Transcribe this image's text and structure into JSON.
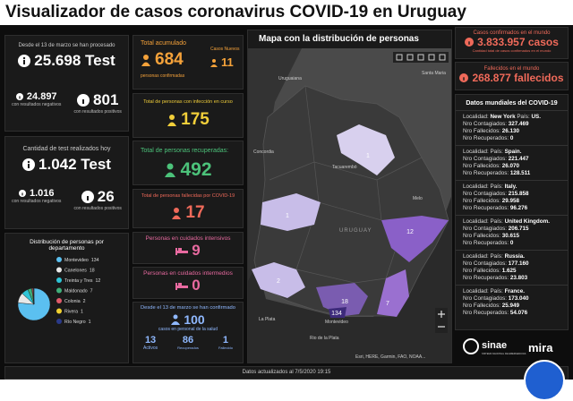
{
  "header": {
    "title": "Visualizador de casos coronavirus COVID-19 en Uruguay"
  },
  "tests_total": {
    "label": "Desde el 13 de marzo se han procesado",
    "value": "25.698 Test",
    "negative": "24.897",
    "negative_label": "con resultados negativos",
    "positive": "801",
    "positive_label": "con resultados positivos"
  },
  "tests_today": {
    "label": "Cantidad de test realizados hoy",
    "value": "1.042 Test",
    "negative": "1.016",
    "negative_label": "con resultados negativos",
    "positive": "26",
    "positive_label": "con resultados positivos"
  },
  "chart_data": {
    "type": "pie",
    "title": "Distribución de personas por departamento",
    "categories": [
      "Montevideo",
      "Canelones",
      "Treinta y Tres",
      "Maldonado",
      "Colonia",
      "Rivera",
      "Río Negro"
    ],
    "values": [
      134,
      18,
      12,
      7,
      2,
      1,
      1
    ],
    "colors": [
      "#5bc0f0",
      "#e8e8e8",
      "#2ec4d6",
      "#3fae7a",
      "#e05a6a",
      "#f0d030",
      "#2a3a8a"
    ]
  },
  "cases": {
    "label": "Total acumulado",
    "value": "684",
    "sub": "personas confirmadas",
    "new_label": "Casos Nuevos",
    "new_value": "11"
  },
  "active": {
    "label": "Total de personas con infección en curso",
    "value": "175"
  },
  "recovered": {
    "label": "Total de personas recuperadas:",
    "value": "492"
  },
  "deaths": {
    "label": "Total de personas fallecidas por COVID-19",
    "value": "17"
  },
  "icu": {
    "label": "Personas en cuidados intensivos",
    "value": "9"
  },
  "intermediate": {
    "label": "Personas en cuidados intermedios",
    "value": "0"
  },
  "health": {
    "label": "Desde el 13 de marzo se han confirmado",
    "value": "100",
    "sub": "casos en personal de la salud",
    "active": "13",
    "active_label": "Activos",
    "recovered": "86",
    "recovered_label": "Recuperados",
    "deceased": "1",
    "deceased_label": "Fallecido"
  },
  "map": {
    "title": "Mapa con la distribución de personas",
    "places": [
      "Uruguaiana",
      "Santa Maria",
      "Concordia",
      "Tacuarembó",
      "Melo",
      "URUGUAY",
      "La Plata",
      "Montevideo",
      "Rio de la Plata"
    ],
    "counts": [
      "1",
      "1",
      "12",
      "2",
      "18",
      "134",
      "7"
    ],
    "attribution": "Esri, HERE, Garmin, FAO, NOAA..."
  },
  "world": {
    "cases_label": "Casos confirmados en el mundo",
    "cases": "3.833.957 casos",
    "cases_sub": "Cantidad total de casos confirmados en el mundo",
    "deaths_label": "Fallecidos en el mundo",
    "deaths": "268.877 fallecidos"
  },
  "countries": {
    "title": "Datos mundiales del COVID-19",
    "labels": {
      "locality": "Localidad:",
      "country": "País:",
      "confirmed": "Nro Contagiados:",
      "deaths": "Nro Fallecidos:",
      "recovered": "Nro Recuperados:"
    },
    "items": [
      {
        "locality": "New York",
        "country": "US.",
        "confirmed": "327.469",
        "deaths": "26.130",
        "recovered": "0"
      },
      {
        "locality": "",
        "country": "Spain.",
        "confirmed": "221.447",
        "deaths": "26.070",
        "recovered": "128.511"
      },
      {
        "locality": "",
        "country": "Italy.",
        "confirmed": "215.858",
        "deaths": "29.958",
        "recovered": "96.276"
      },
      {
        "locality": "",
        "country": "United Kingdom.",
        "confirmed": "206.715",
        "deaths": "30.615",
        "recovered": "0"
      },
      {
        "locality": "",
        "country": "Russia.",
        "confirmed": "177.160",
        "deaths": "1.625",
        "recovered": "23.803"
      },
      {
        "locality": "",
        "country": "France.",
        "confirmed": "173.040",
        "deaths": "25.949",
        "recovered": "54.076"
      }
    ]
  },
  "logos": {
    "sinae": "sinae",
    "sinae_sub": "SISTEMA NACIONAL DE EMERGENCIAS",
    "mira": "mira"
  },
  "footer": {
    "text": "Datos actualizados al 7/5/2020 19:15"
  }
}
